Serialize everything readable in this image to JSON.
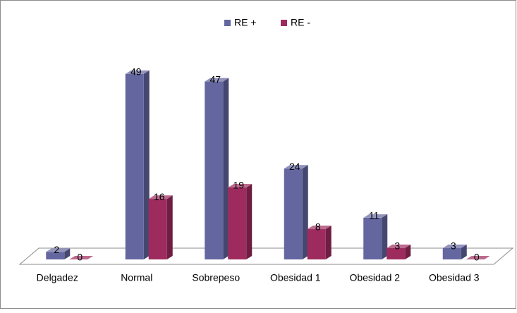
{
  "chart_data": {
    "type": "bar",
    "categories": [
      "Delgadez",
      "Normal",
      "Sobrepeso",
      "Obesidad 1",
      "Obesidad 2",
      "Obesidad 3"
    ],
    "series": [
      {
        "name": "RE +",
        "color": "#6466a0",
        "values": [
          2,
          49,
          47,
          24,
          11,
          3
        ]
      },
      {
        "name": "RE -",
        "color": "#9e2b5e",
        "values": [
          0,
          16,
          19,
          8,
          3,
          0
        ]
      }
    ],
    "legend": "top"
  }
}
